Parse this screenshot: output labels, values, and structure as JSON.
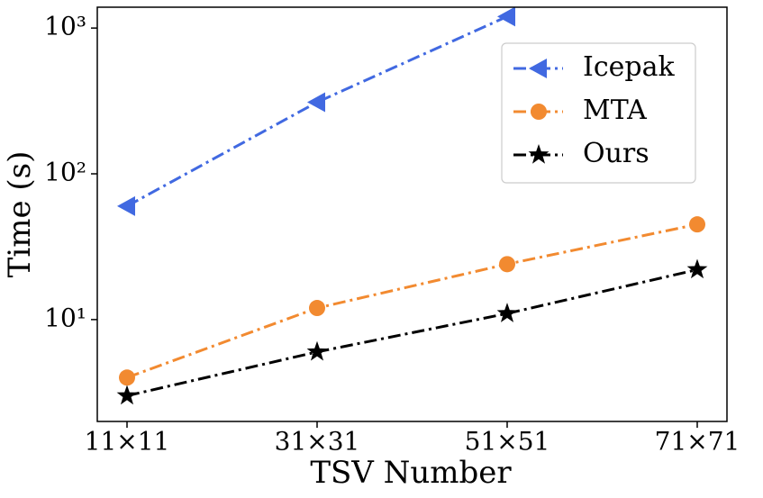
{
  "chart_data": {
    "type": "line",
    "xlabel": "TSV Number",
    "ylabel": "Time (s)",
    "categories": [
      "11×11",
      "31×31",
      "51×51",
      "71×71"
    ],
    "series": [
      {
        "name": "Icepak",
        "color": "#4169e1",
        "marker": "<",
        "values": [
          60,
          310,
          1200,
          null
        ]
      },
      {
        "name": "MTA",
        "color": "#f28a30",
        "marker": "o",
        "values": [
          4,
          12,
          24,
          45
        ]
      },
      {
        "name": "Ours",
        "color": "#000000",
        "marker": "*",
        "values": [
          3,
          6,
          11,
          22
        ]
      }
    ],
    "ylim": [
      2,
      1390
    ],
    "yscale": "log",
    "yticks": [
      {
        "value": 10,
        "label": "10¹"
      },
      {
        "value": 100,
        "label": "10²"
      },
      {
        "value": 1000,
        "label": "10³"
      }
    ],
    "legend": "upper right",
    "grid": false
  }
}
